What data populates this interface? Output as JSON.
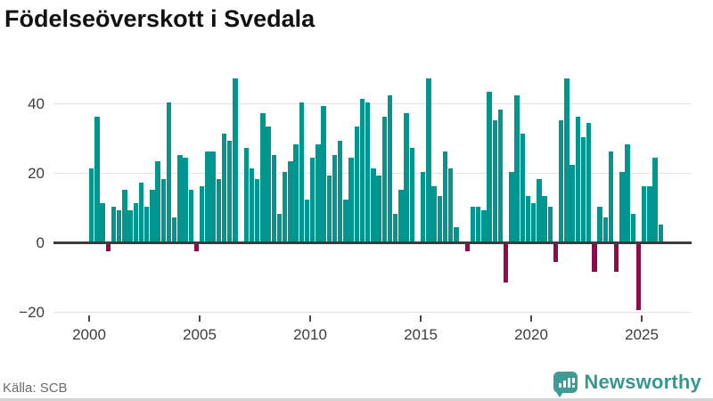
{
  "title": "Födelseöverskott i Svedala",
  "source": "Källa: SCB",
  "brand": {
    "name": "Newsworthy",
    "icon": "bar-chart-speech-bubble-icon",
    "color": "#38978f"
  },
  "colors": {
    "positive_bar": "#00968f",
    "negative_bar": "#8e0c4b",
    "grid": "#e3e3e3",
    "zero_line": "#3d3d3d",
    "axis_text": "#3d3d3d",
    "source_text": "#6b6b6b"
  },
  "chart_data": {
    "type": "bar",
    "title": "Födelseöverskott i Svedala",
    "start_period": "2000 Q1",
    "end_period": "2025 Q4",
    "frequency": "quarterly",
    "x_tick_years": [
      2000,
      2005,
      2010,
      2015,
      2020,
      2025
    ],
    "y_ticks": [
      -20,
      0,
      20,
      40
    ],
    "ylim": [
      -22,
      50
    ],
    "grid": true,
    "legend": false,
    "series": [
      {
        "name": "Födelseöverskott",
        "values_by_year": {
          "2000": [
            21,
            36,
            11,
            -2
          ],
          "2001": [
            10,
            9,
            15,
            9
          ],
          "2002": [
            11,
            17,
            10,
            15
          ],
          "2003": [
            23,
            18,
            40,
            7
          ],
          "2004": [
            25,
            24,
            15,
            -2
          ],
          "2005": [
            16,
            26,
            26,
            18
          ],
          "2006": [
            31,
            29,
            47,
            0
          ],
          "2007": [
            27,
            21,
            18,
            37
          ],
          "2008": [
            33,
            25,
            8,
            20
          ],
          "2009": [
            23,
            28,
            40,
            12
          ],
          "2010": [
            24,
            28,
            39,
            19
          ],
          "2011": [
            25,
            29,
            12,
            24
          ],
          "2012": [
            33,
            41,
            40,
            21
          ],
          "2013": [
            19,
            36,
            42,
            8
          ],
          "2014": [
            15,
            37,
            27,
            0
          ],
          "2015": [
            20,
            47,
            16,
            13
          ],
          "2016": [
            26,
            21,
            4,
            0
          ],
          "2017": [
            -2,
            10,
            10,
            9
          ],
          "2018": [
            43,
            35,
            38,
            -11
          ],
          "2019": [
            20,
            42,
            31,
            13
          ],
          "2020": [
            11,
            18,
            13,
            10
          ],
          "2021": [
            -5,
            35,
            47,
            22
          ],
          "2022": [
            36,
            30,
            34,
            -8
          ],
          "2023": [
            10,
            7,
            26,
            -8
          ],
          "2024": [
            20,
            28,
            8,
            -19
          ],
          "2025": [
            16,
            16,
            24,
            5
          ]
        }
      }
    ]
  }
}
